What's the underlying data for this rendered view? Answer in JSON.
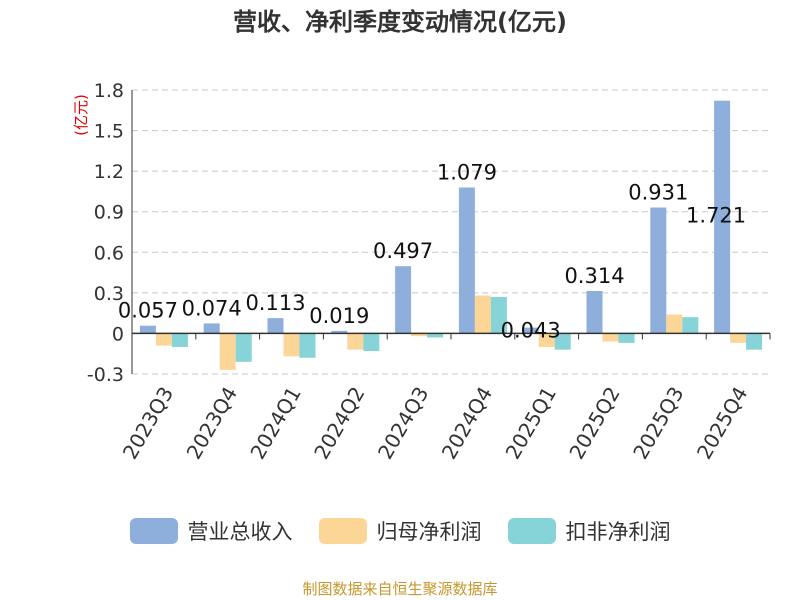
{
  "title": "营收、净利季度变动情况(亿元)",
  "source": "制图数据来自恒生聚源数据库",
  "chart_data": {
    "type": "bar",
    "title": "营收、净利季度变动情况(亿元)",
    "ylabel": "(亿元)",
    "xlabel": "",
    "ylim": [
      -0.3,
      1.8
    ],
    "yticks": [
      -0.3,
      0,
      0.3,
      0.6,
      0.9,
      1.2,
      1.5,
      1.8
    ],
    "ytick_labels": [
      "-0.3",
      "0",
      "0.3",
      "0.6",
      "0.9",
      "1.2",
      "1.5",
      "1.8"
    ],
    "grid": true,
    "legend_position": "bottom",
    "categories": [
      "2023Q3",
      "2023Q4",
      "2024Q1",
      "2024Q2",
      "2024Q3",
      "2024Q4",
      "2025Q1",
      "2025Q2",
      "2025Q3",
      "2025Q4"
    ],
    "series": [
      {
        "name": "营业总收入",
        "color": "#8eaedb",
        "values": [
          0.057,
          0.074,
          0.113,
          0.019,
          0.497,
          1.079,
          0.043,
          0.314,
          0.931,
          1.721
        ],
        "labels": [
          "0.057",
          "0.074",
          "0.113",
          "0.019",
          "0.497",
          "1.079",
          "0.043",
          "0.314",
          "0.931",
          "1.721"
        ]
      },
      {
        "name": "归母净利润",
        "color": "#fcd696",
        "values": [
          -0.09,
          -0.27,
          -0.17,
          -0.12,
          -0.02,
          0.28,
          -0.1,
          -0.06,
          0.14,
          -0.07
        ]
      },
      {
        "name": "扣非净利润",
        "color": "#86d3d8",
        "values": [
          -0.1,
          -0.21,
          -0.18,
          -0.13,
          -0.03,
          0.27,
          -0.12,
          -0.07,
          0.12,
          -0.12
        ]
      }
    ]
  }
}
